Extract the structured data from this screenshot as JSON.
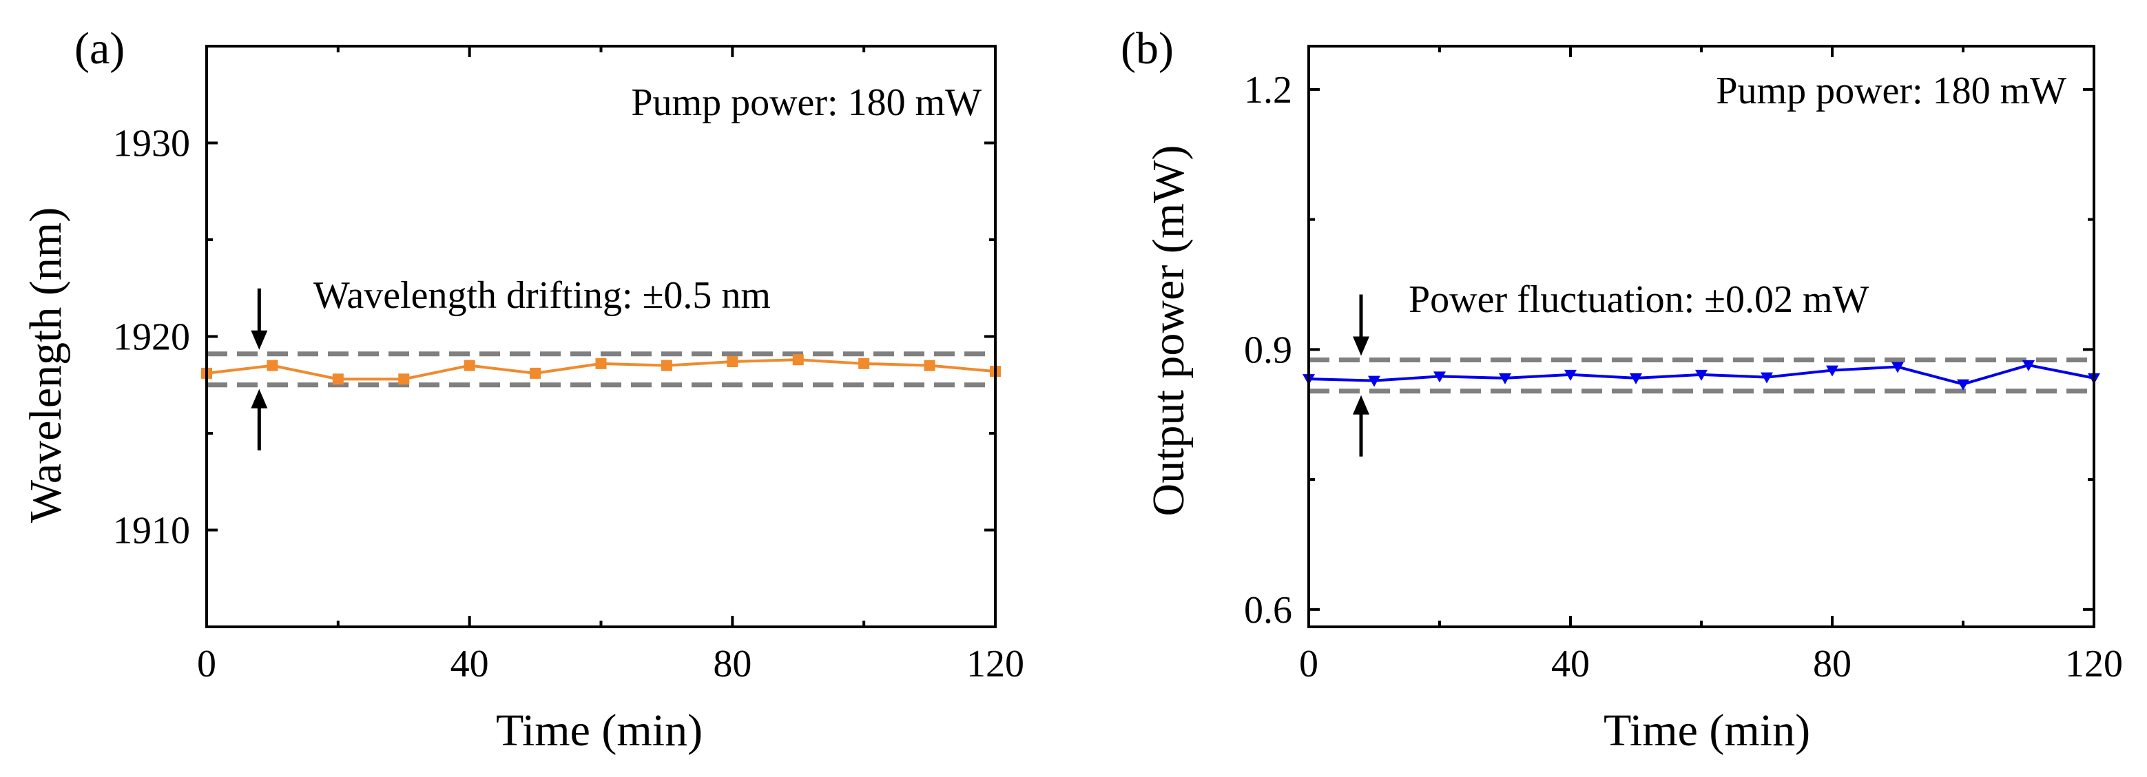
{
  "chart_data": [
    {
      "type": "line",
      "panel_label": "(a)",
      "color": "#F08A2C",
      "marker": "square",
      "xlabel": "Time (min)",
      "ylabel": "Wavelength (nm)",
      "xlim": [
        0,
        120
      ],
      "ylim": [
        1905,
        1935
      ],
      "xticks": [
        0,
        40,
        80,
        120
      ],
      "yticks": [
        1910,
        1920,
        1930
      ],
      "x": [
        0,
        10,
        20,
        30,
        40,
        50,
        60,
        70,
        80,
        90,
        100,
        110,
        120
      ],
      "values": [
        1918.1,
        1918.5,
        1917.8,
        1917.8,
        1918.5,
        1918.1,
        1918.6,
        1918.5,
        1918.7,
        1918.8,
        1918.6,
        1918.5,
        1918.2
      ],
      "ref_lines": [
        1919.1,
        1917.5
      ],
      "annotation": "Pump power: 180 mW",
      "note": "Wavelength drifting: ±0.5 nm",
      "arrow_x": 8
    },
    {
      "type": "line",
      "panel_label": "(b)",
      "color": "#0000EE",
      "marker": "triangle-down",
      "xlabel": "Time (min)",
      "ylabel": "Output power (mW)",
      "xlim": [
        0,
        120
      ],
      "ylim": [
        0.58,
        1.25
      ],
      "xticks": [
        0,
        40,
        80,
        120
      ],
      "yticks": [
        "0.6",
        "0.9",
        "1.2"
      ],
      "x": [
        0,
        10,
        20,
        30,
        40,
        50,
        60,
        70,
        80,
        90,
        100,
        110,
        120
      ],
      "values": [
        0.866,
        0.864,
        0.869,
        0.867,
        0.871,
        0.867,
        0.871,
        0.868,
        0.876,
        0.88,
        0.86,
        0.882,
        0.867
      ],
      "ref_lines": [
        0.888,
        0.852
      ],
      "annotation": "Pump power: 180 mW",
      "note": "Power fluctuation: ±0.02 mW",
      "arrow_x": 8
    }
  ]
}
